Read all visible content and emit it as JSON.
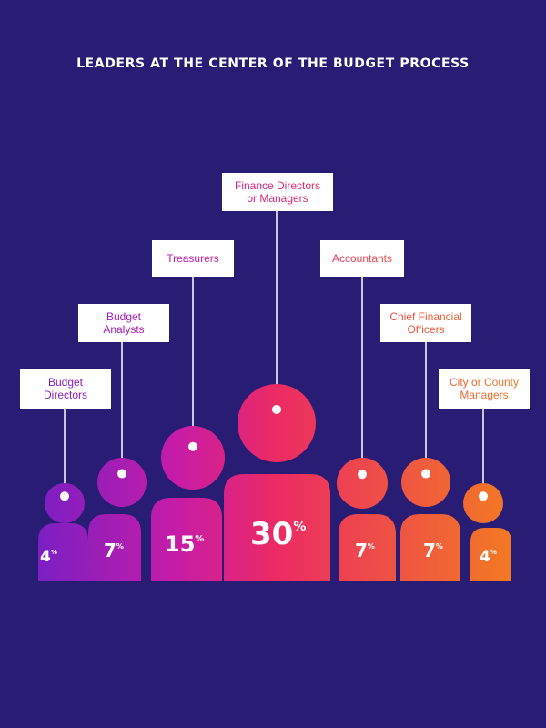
{
  "title": "LEADERS AT THE CENTER OF THE BUDGET PROCESS",
  "colors": {
    "background": "#281c74",
    "purple": "#7a1fc4",
    "magenta": "#c81ca6",
    "pink": "#ec2a64",
    "coral": "#ef5344",
    "orange": "#f06a25"
  },
  "chart_data": {
    "type": "pictogram",
    "unit": "%",
    "categories": [
      "Budget Directors",
      "Budget Analysts",
      "Treasurers",
      "Finance Directors or Managers",
      "Accountants",
      "Chief Financial Officers",
      "City or County Managers"
    ],
    "label_lines": [
      [
        "Budget",
        "Directors"
      ],
      [
        "Budget",
        "Analysts"
      ],
      [
        "Treasurers"
      ],
      [
        "Finance Directors",
        "or Managers"
      ],
      [
        "Accountants"
      ],
      [
        "Chief Financial",
        "Officers"
      ],
      [
        "City or County",
        "Managers"
      ]
    ],
    "values": [
      4,
      7,
      15,
      30,
      7,
      7,
      4
    ]
  }
}
